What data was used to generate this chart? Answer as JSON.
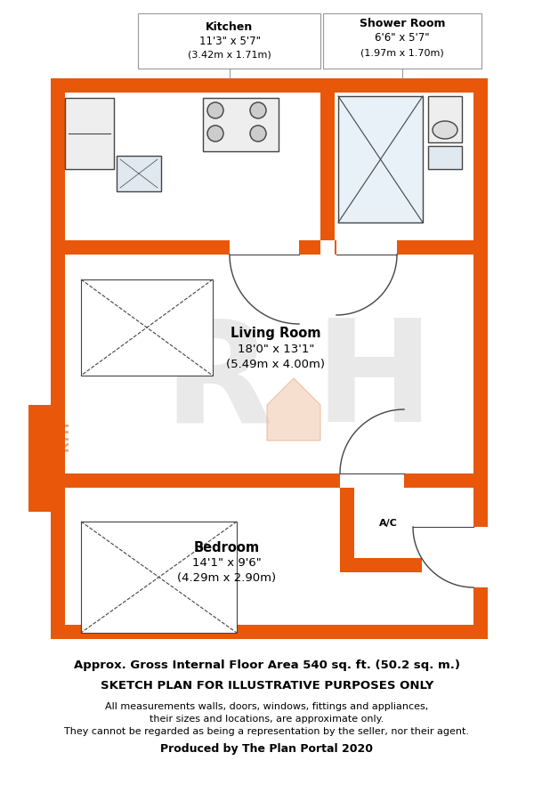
{
  "fig_width": 6.0,
  "fig_height": 9.0,
  "bg_color": "#ffffff",
  "orange_color": "#E8570A",
  "line_color": "#444444",
  "title_line1": "Approx. Gross Internal Floor Area 540 sq. ft. (50.2 sq. m.)",
  "title_line2": "SKETCH PLAN FOR ILLUSTRATIVE PURPOSES ONLY",
  "disclaimer1": "All measurements walls, doors, windows, fittings and appliances,",
  "disclaimer2": "their sizes and locations, are approximate only.",
  "disclaimer3": "They cannot be regarded as being a representation by the seller, nor their agent.",
  "footer": "Produced by The Plan Portal 2020",
  "ac_label": "A/C",
  "PL": 57,
  "PR": 548,
  "PT": 88,
  "PB": 718,
  "WT": 16,
  "KSD": 360,
  "TW": 270,
  "MW": 532
}
